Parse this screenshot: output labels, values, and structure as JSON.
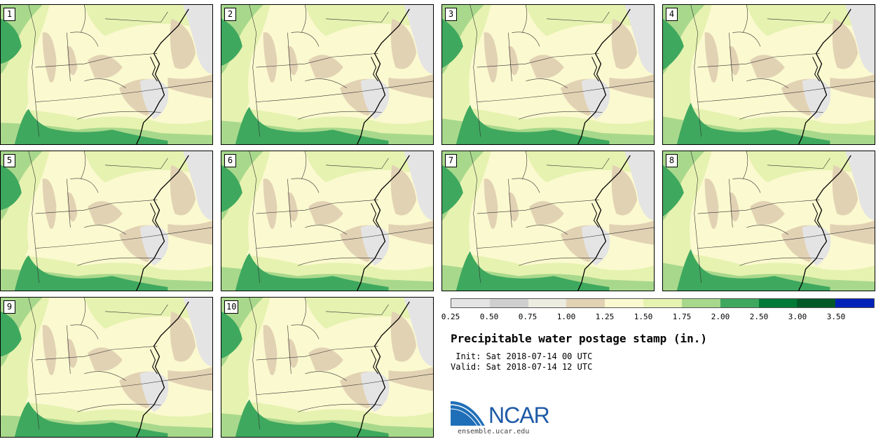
{
  "figure": {
    "title": "Precipitable water postage stamp (in.)",
    "init_line": " Init: Sat 2018-07-14 00 UTC",
    "valid_line": "Valid: Sat 2018-07-14 12 UTC"
  },
  "members": [
    {
      "label": "1"
    },
    {
      "label": "2"
    },
    {
      "label": "3"
    },
    {
      "label": "4"
    },
    {
      "label": "5"
    },
    {
      "label": "6"
    },
    {
      "label": "7"
    },
    {
      "label": "8"
    },
    {
      "label": "9"
    },
    {
      "label": "10"
    }
  ],
  "colorbar": {
    "ticks": [
      "0.25",
      "0.50",
      "0.75",
      "1.00",
      "1.25",
      "1.50",
      "1.75",
      "2.00",
      "2.50",
      "3.00",
      "3.50"
    ],
    "colors": [
      "#e4e4e4",
      "#cfcfcf",
      "#ecece0",
      "#e2d2b4",
      "#fbf9cf",
      "#e6f2b0",
      "#a8d88c",
      "#3ea85e",
      "#007a36",
      "#005a28",
      "#0022b8"
    ]
  },
  "logo": {
    "text": "NCAR",
    "url": "ensemble.ucar.edu"
  }
}
